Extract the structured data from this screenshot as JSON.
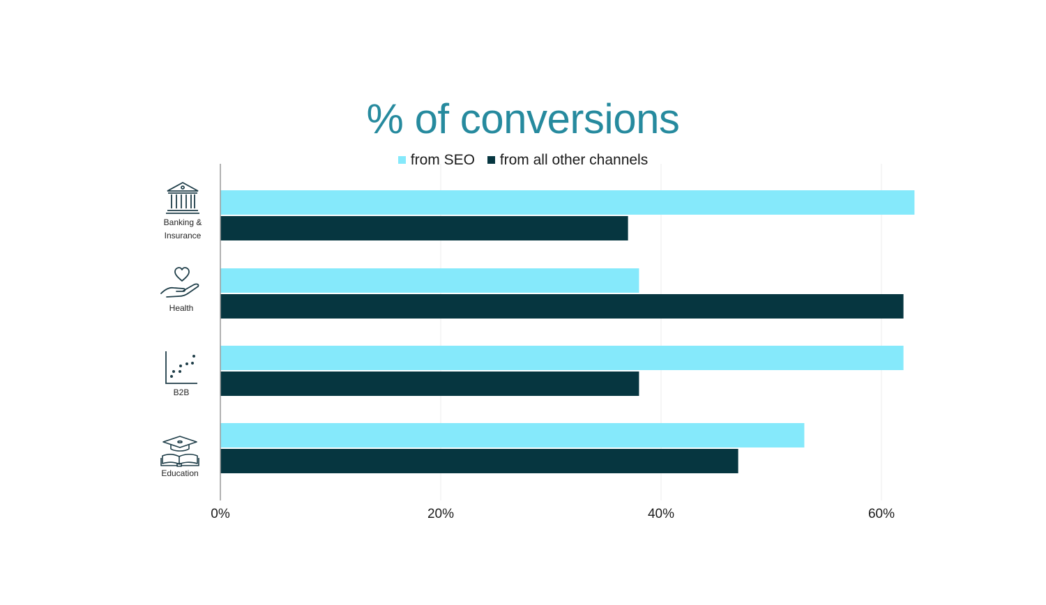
{
  "chart_data": {
    "type": "bar",
    "orientation": "horizontal",
    "title": "% of conversions",
    "categories": [
      "Banking & Insurance",
      "Health",
      "B2B",
      "Education"
    ],
    "series": [
      {
        "name": "from SEO",
        "values": [
          63,
          38,
          62,
          53
        ]
      },
      {
        "name": "from all other channels",
        "values": [
          37,
          62,
          38,
          47
        ]
      }
    ],
    "xlim": [
      0,
      70
    ],
    "x_ticks": [
      "0%",
      "20%",
      "40%",
      "60%"
    ],
    "x_tick_values": [
      0,
      20,
      40,
      60
    ],
    "grid": "vertical",
    "legend_position": "top-center"
  },
  "category_labels": {
    "banking_line1": "Banking &",
    "banking_line2": "Insurance",
    "health": "Health",
    "b2b": "B2B",
    "education": "Education"
  },
  "icons": [
    "bank-icon",
    "heart-hand-icon",
    "scatter-plot-icon",
    "graduation-book-icon"
  ],
  "colors": {
    "seo": "#85e9fb",
    "other": "#063640",
    "title": "#268a9e",
    "grid": "#ececec",
    "axis": "#999999"
  }
}
